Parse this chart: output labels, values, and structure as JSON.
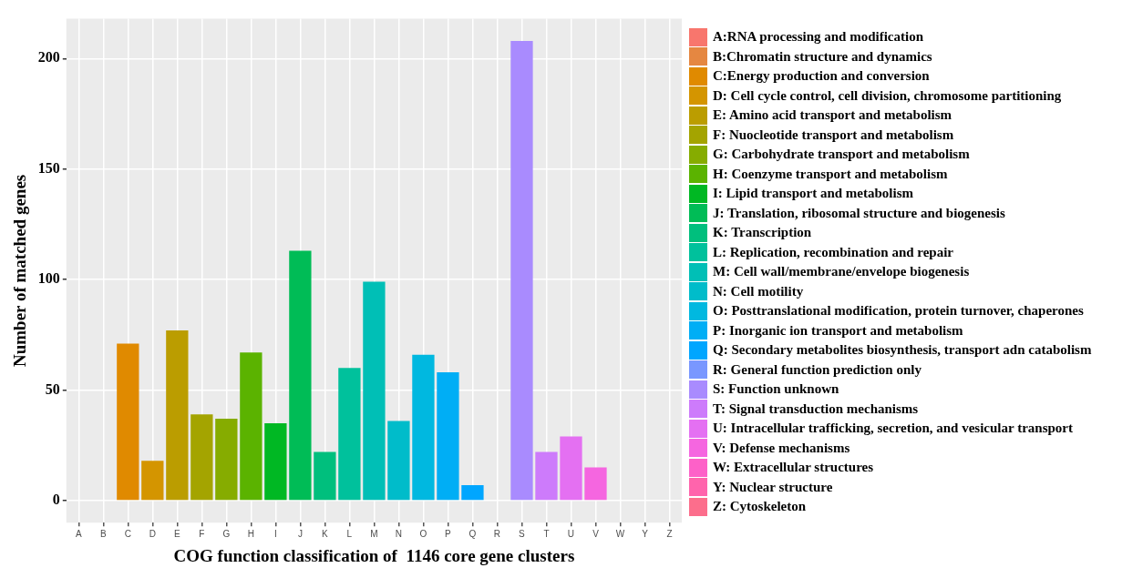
{
  "chart_data": {
    "type": "bar",
    "xlabel": "COG function classification of  1146 core gene clusters",
    "ylabel": "Number of matched genes",
    "categories": [
      "A",
      "B",
      "C",
      "D",
      "E",
      "F",
      "G",
      "H",
      "I",
      "J",
      "K",
      "L",
      "M",
      "N",
      "O",
      "P",
      "Q",
      "R",
      "S",
      "T",
      "U",
      "V",
      "W",
      "Y",
      "Z"
    ],
    "ylim": [
      -10,
      218
    ],
    "yticks": [
      0,
      50,
      100,
      150,
      200
    ],
    "grid": true,
    "legend": "right",
    "series": [
      {
        "name": "A:RNA processing and modification",
        "color": "#f8766d",
        "values": [
          0,
          null,
          null,
          null,
          null,
          null,
          null,
          null,
          null,
          null,
          null,
          null,
          null,
          null,
          null,
          null,
          null,
          null,
          null,
          null,
          null,
          null,
          null,
          null,
          null
        ]
      },
      {
        "name": "B:Chromatin structure and dynamics",
        "color": "#e58741",
        "values": [
          null,
          0,
          null,
          null,
          null,
          null,
          null,
          null,
          null,
          null,
          null,
          null,
          null,
          null,
          null,
          null,
          null,
          null,
          null,
          null,
          null,
          null,
          null,
          null,
          null
        ]
      },
      {
        "name": "C:Energy production and conversion",
        "color": "#e08a00",
        "values": [
          null,
          null,
          71,
          null,
          null,
          null,
          null,
          null,
          null,
          null,
          null,
          null,
          null,
          null,
          null,
          null,
          null,
          null,
          null,
          null,
          null,
          null,
          null,
          null,
          null
        ]
      },
      {
        "name": "D: Cell cycle control, cell division, chromosome partitioning",
        "color": "#d49500",
        "values": [
          null,
          null,
          null,
          18,
          null,
          null,
          null,
          null,
          null,
          null,
          null,
          null,
          null,
          null,
          null,
          null,
          null,
          null,
          null,
          null,
          null,
          null,
          null,
          null,
          null
        ]
      },
      {
        "name": "E: Amino acid transport and metabolism",
        "color": "#bb9d00",
        "values": [
          null,
          null,
          null,
          null,
          77,
          null,
          null,
          null,
          null,
          null,
          null,
          null,
          null,
          null,
          null,
          null,
          null,
          null,
          null,
          null,
          null,
          null,
          null,
          null,
          null
        ]
      },
      {
        "name": "F: Nuocleotide transport and metabolism",
        "color": "#a4a400",
        "values": [
          null,
          null,
          null,
          null,
          null,
          39,
          null,
          null,
          null,
          null,
          null,
          null,
          null,
          null,
          null,
          null,
          null,
          null,
          null,
          null,
          null,
          null,
          null,
          null,
          null
        ]
      },
      {
        "name": "G: Carbohydrate transport and metabolism",
        "color": "#86ac00",
        "values": [
          null,
          null,
          null,
          null,
          null,
          null,
          37,
          null,
          null,
          null,
          null,
          null,
          null,
          null,
          null,
          null,
          null,
          null,
          null,
          null,
          null,
          null,
          null,
          null,
          null
        ]
      },
      {
        "name": "H: Coenzyme transport and metabolism",
        "color": "#5bb300",
        "values": [
          null,
          null,
          null,
          null,
          null,
          null,
          null,
          67,
          null,
          null,
          null,
          null,
          null,
          null,
          null,
          null,
          null,
          null,
          null,
          null,
          null,
          null,
          null,
          null,
          null
        ]
      },
      {
        "name": "I: Lipid transport and metabolism",
        "color": "#00b823",
        "values": [
          null,
          null,
          null,
          null,
          null,
          null,
          null,
          null,
          35,
          null,
          null,
          null,
          null,
          null,
          null,
          null,
          null,
          null,
          null,
          null,
          null,
          null,
          null,
          null,
          null
        ]
      },
      {
        "name": "J: Translation, ribosomal structure and biogenesis",
        "color": "#00bc56",
        "values": [
          null,
          null,
          null,
          null,
          null,
          null,
          null,
          null,
          null,
          113,
          null,
          null,
          null,
          null,
          null,
          null,
          null,
          null,
          null,
          null,
          null,
          null,
          null,
          null,
          null
        ]
      },
      {
        "name": "K: Transcription",
        "color": "#00bf7d",
        "values": [
          null,
          null,
          null,
          null,
          null,
          null,
          null,
          null,
          null,
          null,
          22,
          null,
          null,
          null,
          null,
          null,
          null,
          null,
          null,
          null,
          null,
          null,
          null,
          null,
          null
        ]
      },
      {
        "name": "L: Replication, recombination and repair",
        "color": "#00c19c",
        "values": [
          null,
          null,
          null,
          null,
          null,
          null,
          null,
          null,
          null,
          null,
          null,
          60,
          null,
          null,
          null,
          null,
          null,
          null,
          null,
          null,
          null,
          null,
          null,
          null,
          null
        ]
      },
      {
        "name": "M: Cell wall/membrane/envelope biogenesis",
        "color": "#00bfb6",
        "values": [
          null,
          null,
          null,
          null,
          null,
          null,
          null,
          null,
          null,
          null,
          null,
          null,
          99,
          null,
          null,
          null,
          null,
          null,
          null,
          null,
          null,
          null,
          null,
          null,
          null
        ]
      },
      {
        "name": "N: Cell motility",
        "color": "#00bcca",
        "values": [
          null,
          null,
          null,
          null,
          null,
          null,
          null,
          null,
          null,
          null,
          null,
          null,
          null,
          36,
          null,
          null,
          null,
          null,
          null,
          null,
          null,
          null,
          null,
          null,
          null
        ]
      },
      {
        "name": "O: Posttranslational modification, protein turnover, chaperones",
        "color": "#00b8e0",
        "values": [
          null,
          null,
          null,
          null,
          null,
          null,
          null,
          null,
          null,
          null,
          null,
          null,
          null,
          null,
          66,
          null,
          null,
          null,
          null,
          null,
          null,
          null,
          null,
          null,
          null
        ]
      },
      {
        "name": "P: Inorganic ion transport and metabolism",
        "color": "#00aef5",
        "values": [
          null,
          null,
          null,
          null,
          null,
          null,
          null,
          null,
          null,
          null,
          null,
          null,
          null,
          null,
          null,
          58,
          null,
          null,
          null,
          null,
          null,
          null,
          null,
          null,
          null
        ]
      },
      {
        "name": "Q: Secondary metabolites biosynthesis, transport adn catabolism",
        "color": "#00a6ff",
        "values": [
          null,
          null,
          null,
          null,
          null,
          null,
          null,
          null,
          null,
          null,
          null,
          null,
          null,
          null,
          null,
          null,
          7,
          null,
          null,
          null,
          null,
          null,
          null,
          null,
          null
        ]
      },
      {
        "name": "R: General function prediction only",
        "color": "#7997ff",
        "values": [
          null,
          null,
          null,
          null,
          null,
          null,
          null,
          null,
          null,
          null,
          null,
          null,
          null,
          null,
          null,
          null,
          null,
          0,
          null,
          null,
          null,
          null,
          null,
          null,
          null
        ]
      },
      {
        "name": "S: Function unknown",
        "color": "#a98bfe",
        "values": [
          null,
          null,
          null,
          null,
          null,
          null,
          null,
          null,
          null,
          null,
          null,
          null,
          null,
          null,
          null,
          null,
          null,
          null,
          208,
          null,
          null,
          null,
          null,
          null,
          null
        ]
      },
      {
        "name": "T: Signal transduction mechanisms",
        "color": "#cd7bfb",
        "values": [
          null,
          null,
          null,
          null,
          null,
          null,
          null,
          null,
          null,
          null,
          null,
          null,
          null,
          null,
          null,
          null,
          null,
          null,
          null,
          22,
          null,
          null,
          null,
          null,
          null
        ]
      },
      {
        "name": "U: Intracellular trafficking, secretion, and vesicular transport",
        "color": "#e470f2",
        "values": [
          null,
          null,
          null,
          null,
          null,
          null,
          null,
          null,
          null,
          null,
          null,
          null,
          null,
          null,
          null,
          null,
          null,
          null,
          null,
          null,
          29,
          null,
          null,
          null,
          null
        ]
      },
      {
        "name": "V: Defense mechanisms",
        "color": "#f566e0",
        "values": [
          null,
          null,
          null,
          null,
          null,
          null,
          null,
          null,
          null,
          null,
          null,
          null,
          null,
          null,
          null,
          null,
          null,
          null,
          null,
          null,
          null,
          15,
          null,
          null,
          null
        ]
      },
      {
        "name": "W: Extracellular structures",
        "color": "#fd61c8",
        "values": [
          null,
          null,
          null,
          null,
          null,
          null,
          null,
          null,
          null,
          null,
          null,
          null,
          null,
          null,
          null,
          null,
          null,
          null,
          null,
          null,
          null,
          null,
          0,
          null,
          null
        ]
      },
      {
        "name": "Y: Nuclear structure",
        "color": "#ff64ac",
        "values": [
          null,
          null,
          null,
          null,
          null,
          null,
          null,
          null,
          null,
          null,
          null,
          null,
          null,
          null,
          null,
          null,
          null,
          null,
          null,
          null,
          null,
          null,
          null,
          0,
          null
        ]
      },
      {
        "name": "Z: Cytoskeleton",
        "color": "#fc6e8c",
        "values": [
          null,
          null,
          null,
          null,
          null,
          null,
          null,
          null,
          null,
          null,
          null,
          null,
          null,
          null,
          null,
          null,
          null,
          null,
          null,
          null,
          null,
          null,
          null,
          null,
          0
        ]
      }
    ]
  }
}
